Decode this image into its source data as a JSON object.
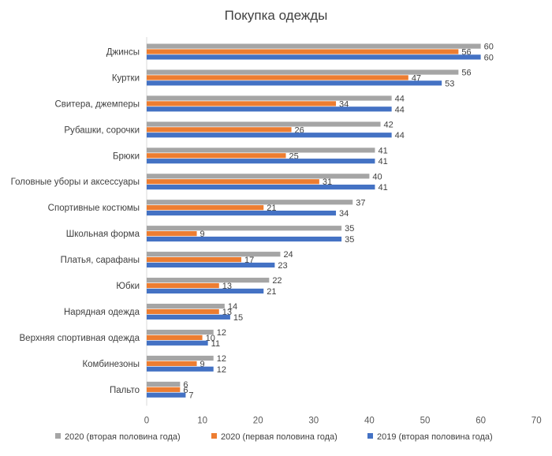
{
  "chart_data": {
    "type": "bar",
    "orientation": "horizontal",
    "title": "Покупка одежды",
    "categories": [
      "Джинсы",
      "Куртки",
      "Свитера, джемперы",
      "Рубашки, сорочки",
      "Брюки",
      "Головные уборы и аксессуары",
      "Спортивные костюмы",
      "Школьная форма",
      "Платья, сарафаны",
      "Юбки",
      "Нарядная одежда",
      "Верхняя спортивная одежда",
      "Комбинезоны",
      "Пальто"
    ],
    "series": [
      {
        "name": "2020  (вторая половина года)",
        "color": "#a5a5a5",
        "values": [
          60,
          56,
          44,
          42,
          41,
          40,
          37,
          35,
          24,
          22,
          14,
          12,
          12,
          6
        ]
      },
      {
        "name": "2020  (первая половина года)",
        "color": "#ed7d31",
        "values": [
          56,
          47,
          34,
          26,
          25,
          31,
          21,
          9,
          17,
          13,
          13,
          10,
          9,
          6
        ]
      },
      {
        "name": "2019  (вторая половина года)",
        "color": "#4472c4",
        "values": [
          60,
          53,
          44,
          44,
          41,
          41,
          34,
          35,
          23,
          21,
          15,
          11,
          12,
          7
        ]
      }
    ],
    "xlim": [
      0,
      70
    ],
    "xticks": [
      0,
      10,
      20,
      30,
      40,
      50,
      60,
      70
    ],
    "grid": false,
    "legend_position": "bottom"
  }
}
